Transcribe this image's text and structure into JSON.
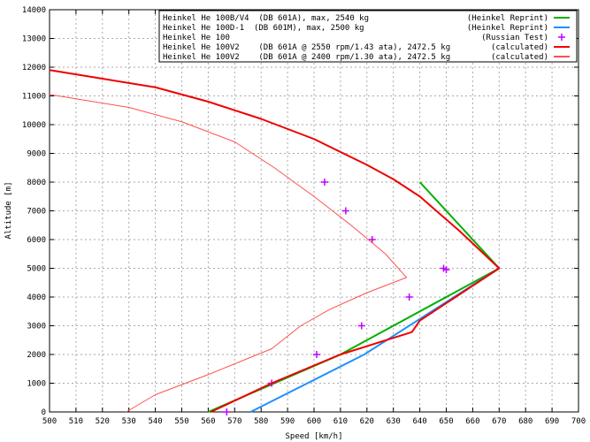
{
  "chart_data": {
    "type": "line",
    "xlabel": "Speed [km/h]",
    "ylabel": "Altitude [m]",
    "xlim": [
      500,
      700
    ],
    "ylim": [
      0,
      14000
    ],
    "xticks": [
      500,
      510,
      520,
      530,
      540,
      550,
      560,
      570,
      580,
      590,
      600,
      610,
      620,
      630,
      640,
      650,
      660,
      670,
      680,
      690,
      700
    ],
    "yticks": [
      0,
      1000,
      2000,
      3000,
      4000,
      5000,
      6000,
      7000,
      8000,
      9000,
      10000,
      11000,
      12000,
      13000,
      14000
    ],
    "grid": true,
    "legend_position": "top-right",
    "series": [
      {
        "name": "Heinkel He 100B/V4  (DB 601A), max, 2540 kg",
        "source": "(Heinkel Reprint)",
        "color": "#00b000",
        "style": "line",
        "width": 2,
        "points": [
          [
            560,
            0
          ],
          [
            610,
            2000
          ],
          [
            670,
            5000
          ],
          [
            640,
            8000
          ]
        ]
      },
      {
        "name": "Heinkel He 100D-1  (DB 601M), max, 2500 kg",
        "source": "(Heinkel Reprint)",
        "color": "#1e90ff",
        "style": "line",
        "width": 2,
        "points": [
          [
            576,
            0
          ],
          [
            619,
            2000
          ],
          [
            670,
            5000
          ]
        ]
      },
      {
        "name": "Heinkel He 100",
        "source": "(Russian Test)",
        "color": "#c000ff",
        "style": "cross",
        "points": [
          [
            567,
            0
          ],
          [
            584,
            1000
          ],
          [
            601,
            2000
          ],
          [
            618,
            3000
          ],
          [
            636,
            4000
          ],
          [
            649,
            5000
          ],
          [
            650,
            4950
          ],
          [
            622,
            6000
          ],
          [
            612,
            7000
          ],
          [
            604,
            8000
          ]
        ]
      },
      {
        "name": "Heinkel He 100V2    (DB 601A @ 2550 rpm/1.43 ata), 2472.5 kg",
        "source": "(calculated)",
        "color": "#ee0000",
        "style": "line",
        "width": 2,
        "points": [
          [
            561,
            0
          ],
          [
            584,
            1000
          ],
          [
            610,
            2000
          ],
          [
            637,
            2780
          ],
          [
            640,
            3180
          ],
          [
            670,
            5000
          ],
          [
            655,
            6300
          ],
          [
            640,
            7500
          ],
          [
            630,
            8100
          ],
          [
            620,
            8600
          ],
          [
            600,
            9500
          ],
          [
            580,
            10200
          ],
          [
            560,
            10800
          ],
          [
            540,
            11300
          ],
          [
            520,
            11600
          ],
          [
            500,
            11900
          ]
        ]
      },
      {
        "name": "Heinkel He 100V2    (DB 601A @ 2400 rpm/1.30 ata), 2472.5 kg",
        "source": "(calculated)",
        "color": "#ff5050",
        "style": "line",
        "width": 1,
        "points": [
          [
            529,
            0
          ],
          [
            540,
            600
          ],
          [
            560,
            1300
          ],
          [
            584,
            2200
          ],
          [
            595,
            3000
          ],
          [
            606,
            3570
          ],
          [
            620,
            4150
          ],
          [
            635,
            4680
          ],
          [
            627,
            5500
          ],
          [
            614,
            6500
          ],
          [
            600,
            7500
          ],
          [
            585,
            8500
          ],
          [
            570,
            9400
          ],
          [
            550,
            10100
          ],
          [
            530,
            10600
          ],
          [
            500,
            11050
          ]
        ]
      }
    ]
  }
}
